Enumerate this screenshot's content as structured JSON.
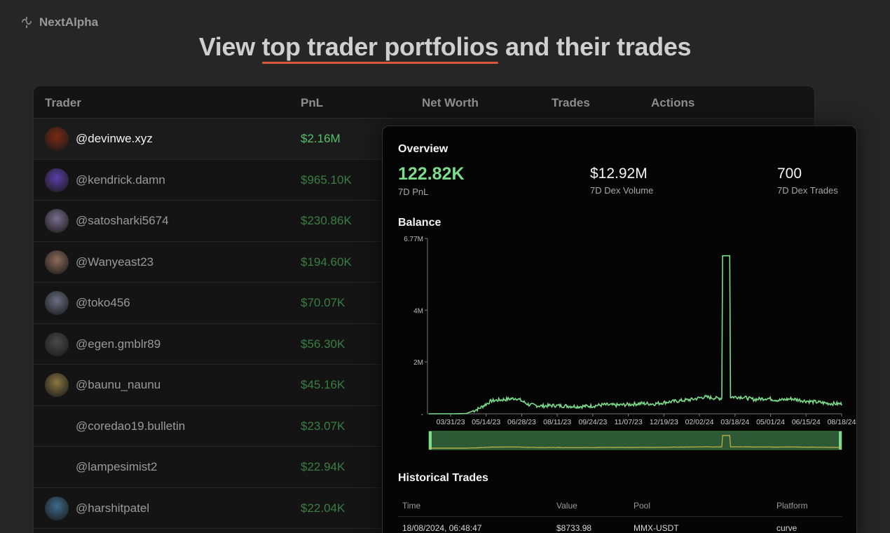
{
  "brand": {
    "name": "NextAlpha"
  },
  "hero": {
    "prefix": "View ",
    "highlight": "top trader portfolios",
    "suffix": " and their trades"
  },
  "table": {
    "columns": {
      "trader": "Trader",
      "pnl": "PnL",
      "net_worth": "Net Worth",
      "trades": "Trades",
      "actions": "Actions"
    },
    "rows": [
      {
        "handle": "@devinwe.xyz",
        "pnl": "$2.16M",
        "avatar_color": "#7a2a12"
      },
      {
        "handle": "@kendrick.damn",
        "pnl": "$965.10K",
        "avatar_color": "#5a3fa8"
      },
      {
        "handle": "@satosharki5674",
        "pnl": "$230.86K",
        "avatar_color": "#7b6e8e"
      },
      {
        "handle": "@Wanyeast23",
        "pnl": "$194.60K",
        "avatar_color": "#8d6c5a"
      },
      {
        "handle": "@toko456",
        "pnl": "$70.07K",
        "avatar_color": "#6b6f83"
      },
      {
        "handle": "@egen.gmblr89",
        "pnl": "$56.30K",
        "avatar_color": "#4a4a4a"
      },
      {
        "handle": "@baunu_naunu",
        "pnl": "$45.16K",
        "avatar_color": "#8a7640"
      },
      {
        "handle": "@coredao19.bulletin",
        "pnl": "$23.07K",
        "avatar_color": ""
      },
      {
        "handle": "@lampesimist2",
        "pnl": "$22.94K",
        "avatar_color": ""
      },
      {
        "handle": "@harshitpatel",
        "pnl": "$22.04K",
        "avatar_color": "#3e6b8c"
      }
    ]
  },
  "overview": {
    "title": "Overview",
    "pnl_value": "122.82K",
    "pnl_label": "7D PnL",
    "volume_value": "$12.92M",
    "volume_label": "7D Dex Volume",
    "trades_value": "700",
    "trades_label": "7D Dex Trades"
  },
  "balance": {
    "title": "Balance"
  },
  "chart_data": {
    "type": "line",
    "title": "Balance",
    "y_ticks": [
      "6.77M",
      "4M",
      "2M"
    ],
    "ylim": [
      0,
      6770000
    ],
    "x_ticks": [
      "03/31/23",
      "05/14/23",
      "06/28/23",
      "08/11/23",
      "09/24/23",
      "11/07/23",
      "12/19/23",
      "02/02/24",
      "03/18/24",
      "05/01/24",
      "06/15/24",
      "08/18/24"
    ],
    "series": [
      {
        "values": [
          0,
          0,
          0,
          10000,
          200000,
          500000,
          550000,
          600000,
          350000,
          300000,
          320000,
          300000,
          280000,
          300000,
          350000,
          330000,
          360000,
          400000,
          380000,
          450000,
          500000,
          550000,
          650000,
          600000,
          6100000,
          650000,
          550000,
          600000,
          520000,
          580000,
          500000,
          450000,
          400000,
          380000
        ]
      }
    ],
    "grid": false,
    "line_color": "#7ddc8c"
  },
  "historical": {
    "title": "Historical Trades",
    "columns": {
      "time": "Time",
      "value": "Value",
      "pool": "Pool",
      "platform": "Platform"
    },
    "rows": [
      {
        "time": "18/08/2024, 06:48:47",
        "value": "$8733.98",
        "pool": "MMX-USDT",
        "platform": "curve"
      }
    ]
  }
}
